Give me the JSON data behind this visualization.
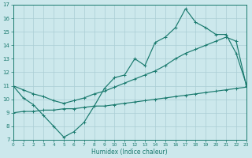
{
  "bg_color": "#cce8ec",
  "line_color": "#1a7a6e",
  "grid_color": "#aacdd4",
  "xlabel": "Humidex (Indice chaleur)",
  "xlim": [
    0,
    23
  ],
  "ylim": [
    7,
    17
  ],
  "figsize": [
    3.2,
    2.0
  ],
  "dpi": 100,
  "curve1_x": [
    0,
    1,
    2,
    3,
    4,
    5,
    6,
    7,
    8,
    9,
    10,
    11,
    12,
    13,
    14,
    15,
    16,
    17,
    18,
    19,
    20,
    21,
    22,
    23
  ],
  "curve1_y": [
    11,
    10.1,
    9.6,
    8.8,
    8.0,
    7.2,
    7.6,
    8.3,
    9.5,
    10.8,
    11.6,
    11.8,
    13.0,
    12.5,
    14.2,
    14.6,
    15.3,
    16.7,
    15.7,
    15.3,
    14.8,
    14.8,
    13.4,
    11.1
  ],
  "curve2_x": [
    0,
    1,
    2,
    3,
    4,
    5,
    6,
    7,
    8,
    9,
    10,
    11,
    12,
    13,
    14,
    15,
    16,
    17,
    18,
    19,
    20,
    21,
    22,
    23
  ],
  "curve2_y": [
    11,
    10.7,
    10.4,
    10.2,
    9.9,
    9.7,
    9.9,
    10.1,
    10.4,
    10.6,
    10.9,
    11.2,
    11.5,
    11.8,
    12.1,
    12.5,
    13.0,
    13.4,
    13.7,
    14.0,
    14.3,
    14.6,
    14.3,
    11.0
  ],
  "curve3_x": [
    0,
    1,
    2,
    3,
    4,
    5,
    6,
    7,
    8,
    9,
    10,
    11,
    12,
    13,
    14,
    15,
    16,
    17,
    18,
    19,
    20,
    21,
    22,
    23
  ],
  "curve3_y": [
    9.0,
    9.1,
    9.1,
    9.2,
    9.2,
    9.3,
    9.3,
    9.4,
    9.5,
    9.5,
    9.6,
    9.7,
    9.8,
    9.9,
    10.0,
    10.1,
    10.2,
    10.3,
    10.4,
    10.5,
    10.6,
    10.7,
    10.8,
    10.9
  ]
}
